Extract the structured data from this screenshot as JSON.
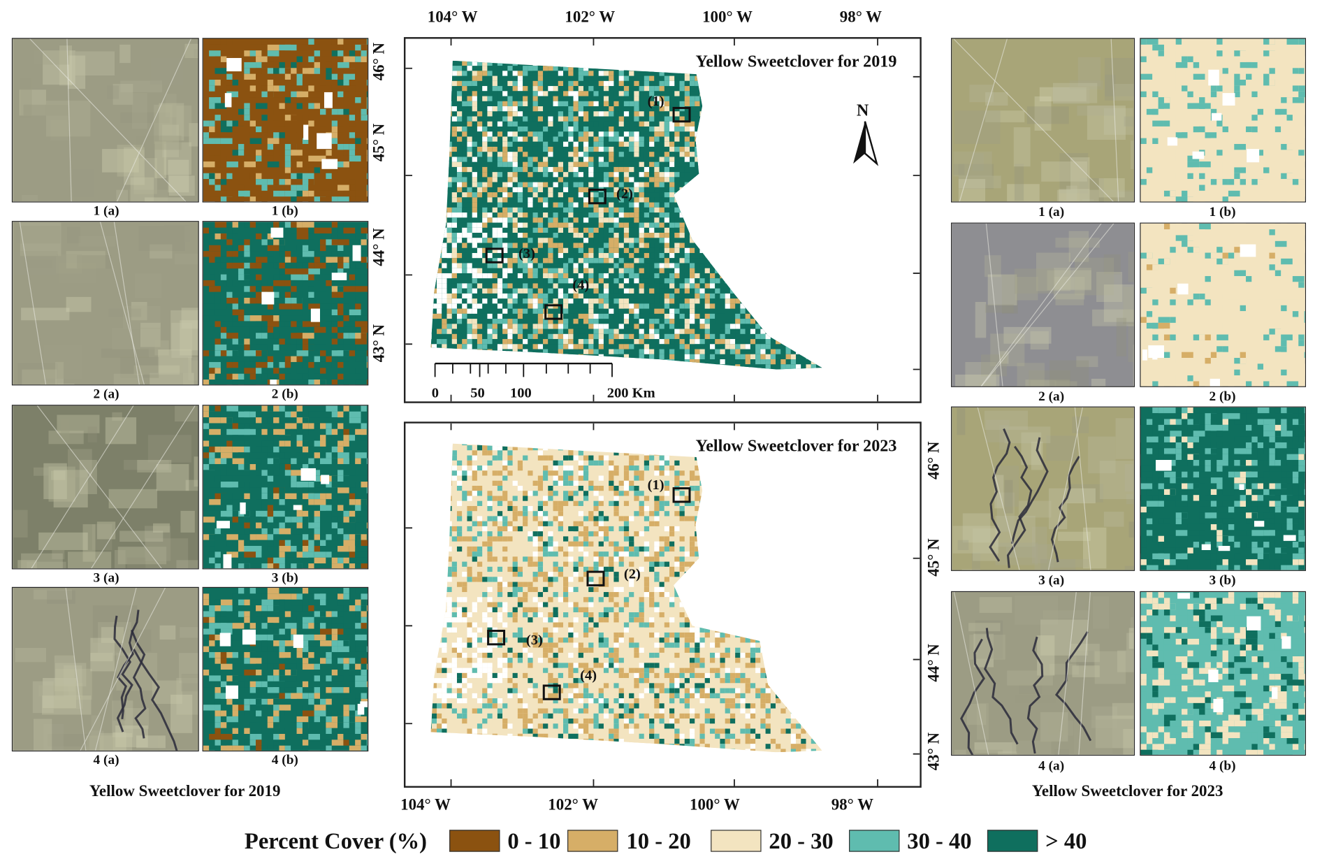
{
  "colors": {
    "c0_10": "#8b5210",
    "c10_20": "#d6ae67",
    "c20_30": "#f3e4c0",
    "c30_40": "#5fbcaf",
    "c40": "#0f6f5e",
    "imgGray": "#9c9c84",
    "imgOlive": "#a8a578"
  },
  "left_panel": {
    "caption": "Yellow Sweetclover for 2019",
    "labels": [
      "1 (a)",
      "1 (b)",
      "2 (a)",
      "2 (b)",
      "3 (a)",
      "3 (b)",
      "4 (a)",
      "4 (b)"
    ]
  },
  "right_panel": {
    "caption": "Yellow Sweetclover for 2023",
    "labels": [
      "1 (a)",
      "1 (b)",
      "2 (a)",
      "2 (b)",
      "3 (a)",
      "3 (b)",
      "4 (a)",
      "4 (b)"
    ],
    "lat_labels": [
      "46° N",
      "45° N",
      "44° N",
      "43° N"
    ]
  },
  "map_top": {
    "title": "Yellow Sweetclover for 2019",
    "lon_labels": [
      "104° W",
      "102° W",
      "100° W",
      "98° W"
    ],
    "lat_labels": [
      "46° N",
      "45° N",
      "44° N",
      "43° N"
    ],
    "sites": [
      "(1)",
      "(2)",
      "(3)",
      "(4)"
    ],
    "north": "N",
    "scale_labels": [
      "0",
      "50",
      "100",
      "200 Km"
    ]
  },
  "map_bottom": {
    "title": "Yellow Sweetclover for 2023",
    "lon_labels": [
      "104° W",
      "102° W",
      "100° W",
      "98° W"
    ],
    "sites": [
      "(1)",
      "(2)",
      "(3)",
      "(4)"
    ]
  },
  "legend": {
    "title": "Percent Cover (%)",
    "classes": [
      "0 - 10",
      "10 - 20",
      "20 - 30",
      "30 - 40",
      "> 40"
    ]
  }
}
